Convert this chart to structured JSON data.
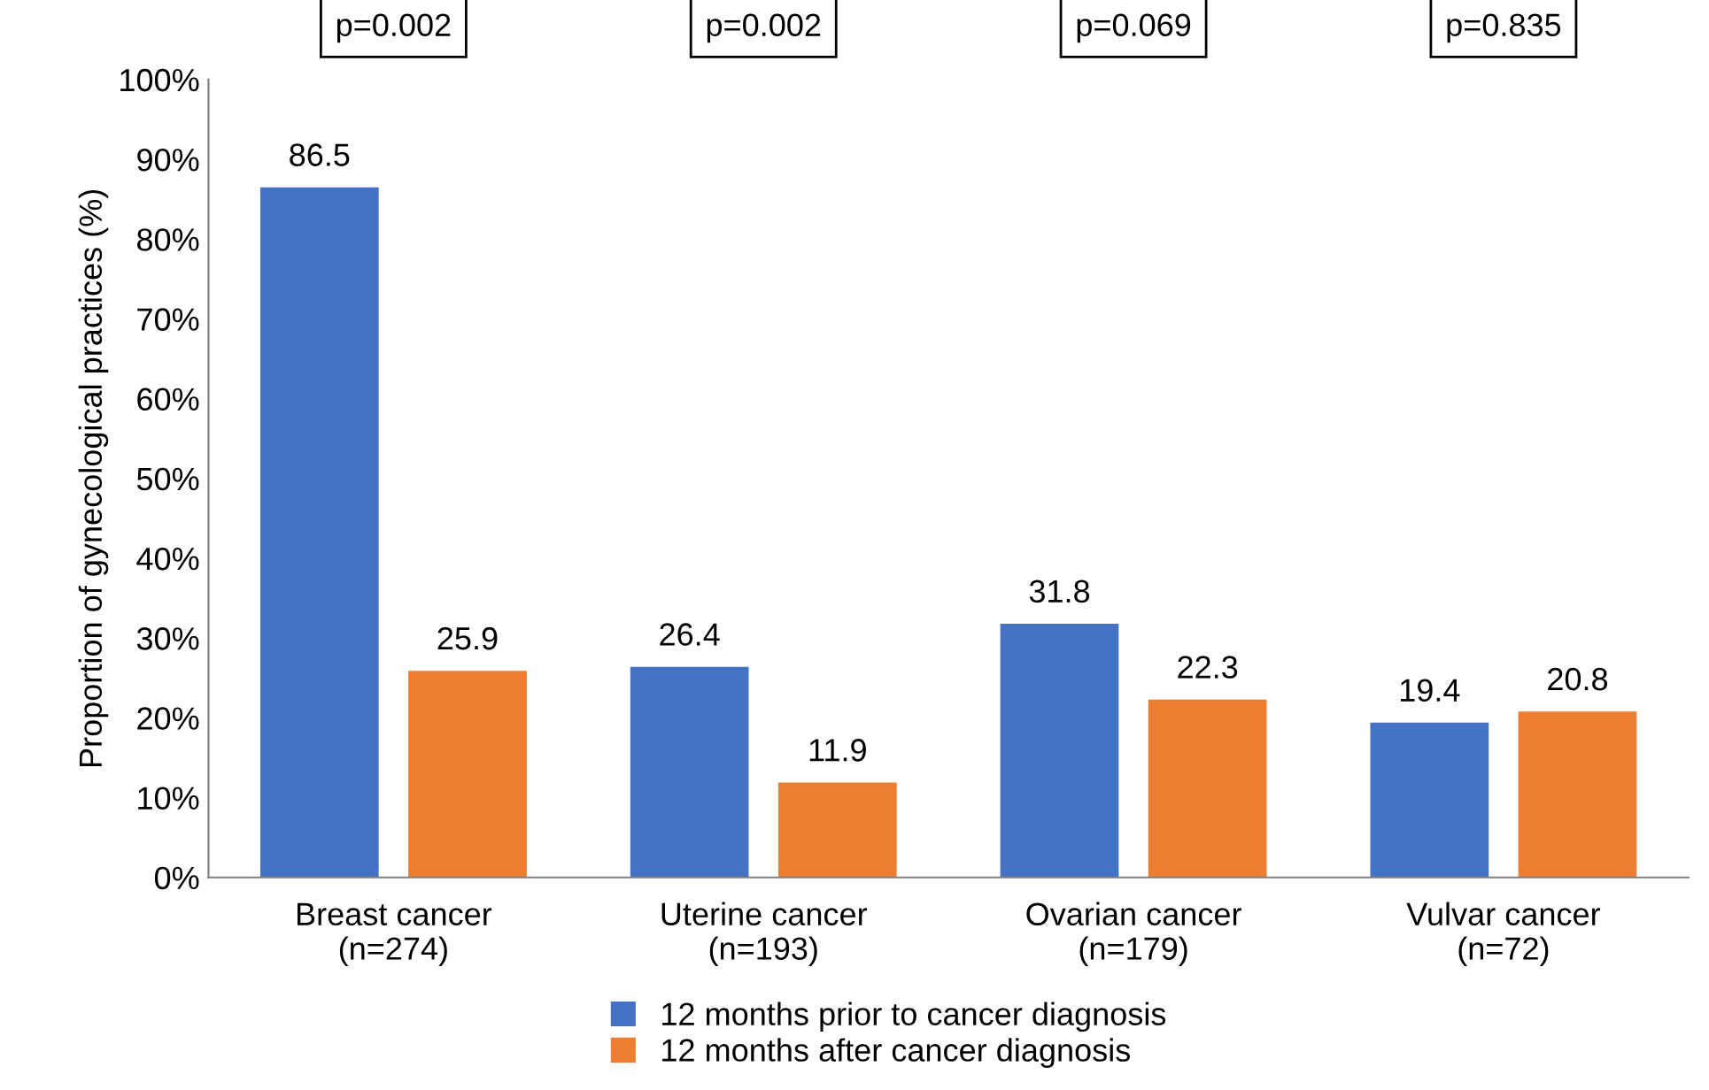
{
  "chart_data": {
    "type": "bar",
    "ylabel": "Proportion of gynecological practices (%)",
    "categories": [
      "Breast cancer\n(n=274)",
      "Uterine cancer\n(n=193)",
      "Ovarian cancer\n(n=179)",
      "Vulvar cancer\n(n=72)"
    ],
    "series": [
      {
        "name": "12 months prior to cancer diagnosis",
        "color": "#4472c4",
        "values": [
          86.5,
          26.4,
          31.8,
          19.4
        ]
      },
      {
        "name": "12 months after cancer diagnosis",
        "color": "#ed7d31",
        "values": [
          25.9,
          11.9,
          22.3,
          20.8
        ]
      }
    ],
    "ylim": [
      0,
      100
    ],
    "yticks": [
      {
        "value": 0,
        "label": "0%"
      },
      {
        "value": 10,
        "label": "10%"
      },
      {
        "value": 20,
        "label": "20%"
      },
      {
        "value": 30,
        "label": "30%"
      },
      {
        "value": 40,
        "label": "40%"
      },
      {
        "value": 50,
        "label": "50%"
      },
      {
        "value": 60,
        "label": "60%"
      },
      {
        "value": 70,
        "label": "70%"
      },
      {
        "value": 80,
        "label": "80%"
      },
      {
        "value": 90,
        "label": "90%"
      },
      {
        "value": 100,
        "label": "100%"
      }
    ],
    "annotations": [
      "p=0.002",
      "p=0.002",
      "p=0.069",
      "p=0.835"
    ],
    "data_labels": true,
    "grid": false,
    "legend": "bottom"
  }
}
